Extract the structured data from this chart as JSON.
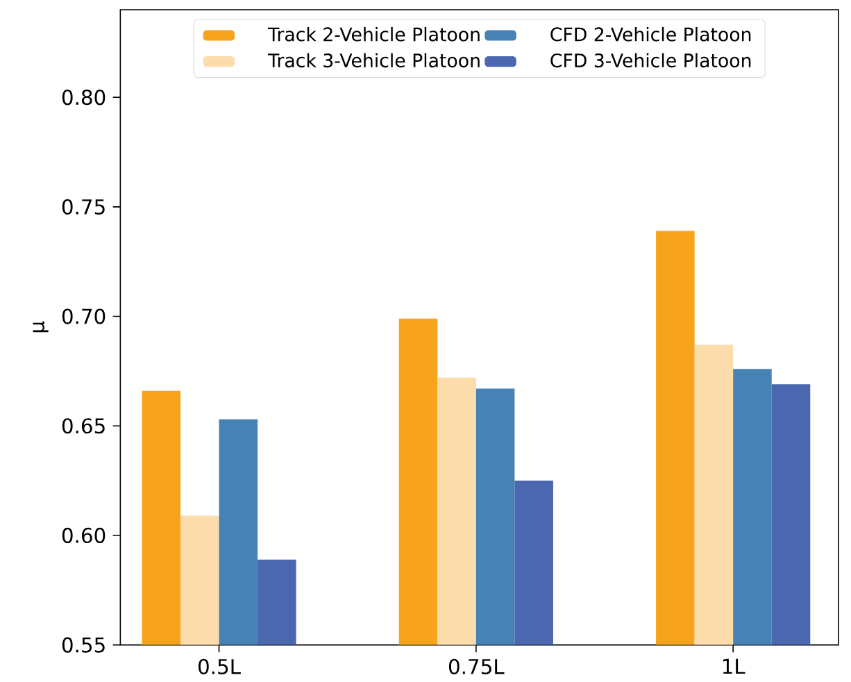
{
  "chart_data": {
    "type": "bar",
    "ylabel": "μ",
    "categories": [
      "0.5L",
      "0.75L",
      "1L"
    ],
    "series": [
      {
        "name": "Track 2-Vehicle Platoon",
        "color": "#f8a31c",
        "values": [
          0.666,
          0.699,
          0.739
        ]
      },
      {
        "name": "Track 3-Vehicle Platoon",
        "color": "#fcdcaa",
        "values": [
          0.609,
          0.672,
          0.687
        ]
      },
      {
        "name": "CFD 2-Vehicle Platoon",
        "color": "#4682b4",
        "values": [
          0.653,
          0.667,
          0.676
        ]
      },
      {
        "name": "CFD 3-Vehicle Platoon",
        "color": "#4b67b0",
        "values": [
          0.589,
          0.625,
          0.669
        ]
      }
    ],
    "ylim": [
      0.55,
      0.84
    ],
    "yticks": [
      {
        "value": 0.55,
        "label": "0.55"
      },
      {
        "value": 0.6,
        "label": "0.60"
      },
      {
        "value": 0.65,
        "label": "0.65"
      },
      {
        "value": 0.7,
        "label": "0.70"
      },
      {
        "value": 0.75,
        "label": "0.75"
      },
      {
        "value": 0.8,
        "label": "0.80"
      }
    ],
    "grid": false,
    "legend": "top"
  }
}
